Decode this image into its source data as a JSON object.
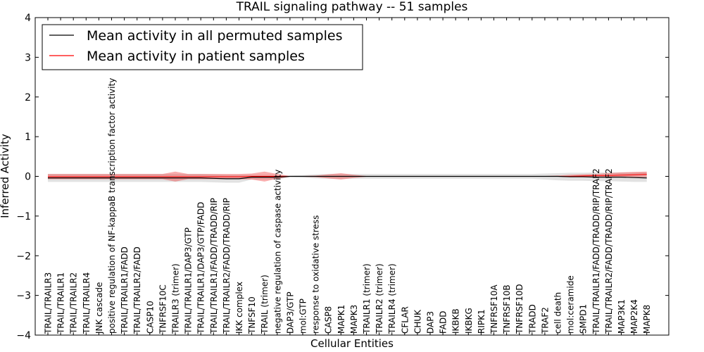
{
  "chart_data": {
    "type": "line",
    "title": "TRAIL signaling pathway -- 51 samples",
    "xlabel": "Cellular Entities",
    "ylabel": "Inferred Activity",
    "ylim": [
      -4,
      4
    ],
    "yticks": [
      -4,
      -3,
      -2,
      -1,
      0,
      1,
      2,
      3,
      4
    ],
    "ytick_labels": [
      "−4",
      "−3",
      "−2",
      "−1",
      "0",
      "1",
      "2",
      "3",
      "4"
    ],
    "grid": false,
    "legend_position": "top-left",
    "categories": [
      "TRAIL/TRAILR3",
      "TRAIL/TRAILR1",
      "TRAIL/TRAILR2",
      "TRAIL/TRAILR4",
      "JNK cascade",
      "positive regulation of NF-kappaB transcription factor activity",
      "TRAIL/TRAILR1/FADD",
      "TRAIL/TRAILR2/FADD",
      "CASP10",
      "TNFRSF10C",
      "TRAILR3 (trimer)",
      "TRAIL/TRAILR1/DAP3/GTP",
      "TRAIL/TRAILR1/DAP3/GTP/FADD",
      "TRAIL/TRAILR1/FADD/TRADD/RIP",
      "TRAIL/TRAILR2/FADD/TRADD/RIP",
      "IKK complex",
      "TNFSF10",
      "TRAIL (trimer)",
      "negative regulation of caspase activity",
      "DAP3/GTP",
      "mol:GTP",
      "response to oxidative stress",
      "CASP8",
      "MAPK1",
      "MAPK3",
      "TRAILR1 (trimer)",
      "TRAILR2 (trimer)",
      "TRAILR4 (trimer)",
      "CFLAR",
      "CHUK",
      "DAP3",
      "FADD",
      "IKBKB",
      "IKBKG",
      "RIPK1",
      "TNFRSF10A",
      "TNFRSF10B",
      "TNFRSF10D",
      "TRADD",
      "TRAF2",
      "cell death",
      "mol:ceramide",
      "SMPD1",
      "TRAIL/TRAILR1/FADD/TRADD/RIP/TRAF2",
      "TRAIL/TRAILR2/FADD/TRADD/RIP/TRAF2",
      "MAP3K1",
      "MAP2K4",
      "MAPK8"
    ],
    "series": [
      {
        "name": "Mean activity in all permuted samples",
        "color": "#000000",
        "values": [
          -0.04,
          -0.04,
          -0.04,
          -0.04,
          -0.04,
          -0.04,
          -0.04,
          -0.04,
          -0.04,
          -0.04,
          -0.04,
          -0.04,
          -0.04,
          -0.05,
          -0.06,
          -0.06,
          -0.02,
          -0.02,
          -0.02,
          0.0,
          0.0,
          0.0,
          0.0,
          0.0,
          0.0,
          0.0,
          0.0,
          0.0,
          0.0,
          0.0,
          0.0,
          0.0,
          0.0,
          0.0,
          0.0,
          0.0,
          0.0,
          0.0,
          0.0,
          0.0,
          0.0,
          -0.01,
          -0.01,
          -0.02,
          -0.02,
          -0.02,
          -0.03,
          -0.04
        ],
        "band_lower": [
          -0.14,
          -0.14,
          -0.14,
          -0.14,
          -0.14,
          -0.14,
          -0.14,
          -0.14,
          -0.14,
          -0.14,
          -0.14,
          -0.14,
          -0.14,
          -0.15,
          -0.16,
          -0.16,
          -0.08,
          -0.08,
          -0.08,
          -0.02,
          -0.03,
          -0.05,
          -0.06,
          -0.06,
          -0.06,
          -0.06,
          -0.06,
          -0.06,
          -0.06,
          -0.06,
          -0.06,
          -0.06,
          -0.06,
          -0.06,
          -0.06,
          -0.06,
          -0.06,
          -0.06,
          -0.06,
          -0.08,
          -0.1,
          -0.11,
          -0.11,
          -0.12,
          -0.12,
          -0.13,
          -0.14,
          -0.14
        ],
        "band_upper": [
          0.06,
          0.06,
          0.06,
          0.06,
          0.06,
          0.06,
          0.06,
          0.06,
          0.06,
          0.06,
          0.06,
          0.06,
          0.06,
          0.05,
          0.04,
          0.04,
          0.04,
          0.04,
          0.04,
          0.02,
          0.03,
          0.05,
          0.06,
          0.06,
          0.06,
          0.06,
          0.06,
          0.06,
          0.06,
          0.06,
          0.06,
          0.06,
          0.06,
          0.06,
          0.06,
          0.06,
          0.06,
          0.06,
          0.06,
          0.07,
          0.08,
          0.09,
          0.09,
          0.1,
          0.1,
          0.1,
          0.1,
          0.1
        ]
      },
      {
        "name": "Mean activity in patient samples",
        "color": "#ff0000",
        "values": [
          -0.01,
          -0.01,
          -0.01,
          -0.01,
          -0.01,
          -0.01,
          -0.01,
          -0.01,
          -0.01,
          -0.01,
          -0.01,
          -0.01,
          -0.01,
          -0.01,
          -0.01,
          -0.01,
          0.0,
          0.0,
          0.0,
          0.0,
          0.0,
          0.0,
          0.0,
          0.0,
          0.0,
          0.0,
          0.0,
          0.0,
          0.0,
          0.0,
          0.0,
          0.0,
          0.0,
          0.0,
          0.0,
          0.0,
          0.0,
          0.0,
          0.0,
          0.0,
          0.0,
          0.0,
          0.01,
          0.02,
          0.02,
          0.03,
          0.04,
          0.05
        ],
        "band_lower": [
          -0.07,
          -0.07,
          -0.07,
          -0.07,
          -0.07,
          -0.07,
          -0.07,
          -0.07,
          -0.07,
          -0.07,
          -0.13,
          -0.07,
          -0.07,
          -0.07,
          -0.07,
          -0.07,
          -0.08,
          -0.13,
          -0.06,
          -0.01,
          -0.01,
          -0.02,
          -0.05,
          -0.08,
          -0.04,
          -0.01,
          -0.01,
          -0.01,
          -0.01,
          -0.01,
          -0.01,
          -0.01,
          -0.01,
          -0.01,
          -0.01,
          -0.01,
          -0.01,
          -0.01,
          -0.01,
          -0.01,
          -0.01,
          -0.02,
          -0.02,
          -0.02,
          -0.02,
          -0.02,
          -0.02,
          -0.02
        ],
        "band_upper": [
          0.06,
          0.06,
          0.06,
          0.06,
          0.06,
          0.06,
          0.06,
          0.06,
          0.06,
          0.06,
          0.12,
          0.06,
          0.06,
          0.06,
          0.06,
          0.06,
          0.07,
          0.12,
          0.06,
          0.01,
          0.01,
          0.02,
          0.05,
          0.08,
          0.04,
          0.01,
          0.01,
          0.01,
          0.01,
          0.01,
          0.01,
          0.01,
          0.01,
          0.01,
          0.01,
          0.01,
          0.01,
          0.01,
          0.01,
          0.01,
          0.02,
          0.04,
          0.05,
          0.06,
          0.08,
          0.1,
          0.11,
          0.12
        ]
      }
    ]
  }
}
